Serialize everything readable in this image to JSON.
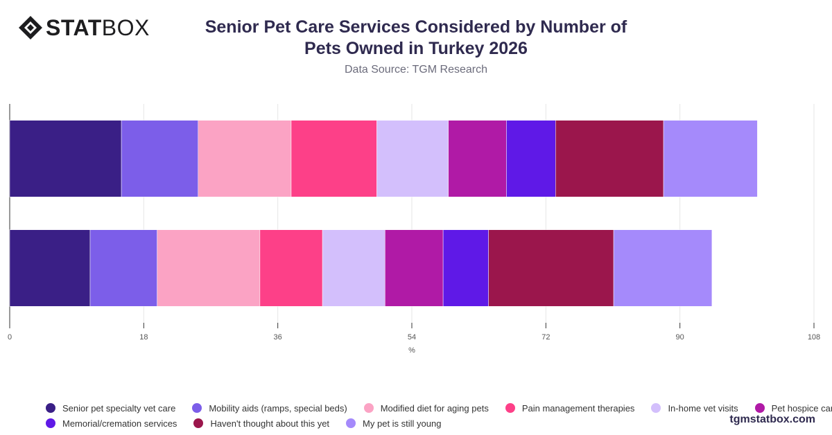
{
  "brand": {
    "logo_bold": "STAT",
    "logo_light": "BOX",
    "watermark": "tgmstatbox.com"
  },
  "header": {
    "title_line1": "Senior Pet Care Services Considered by Number of",
    "title_line2": "Pets Owned in Turkey 2026",
    "subtitle": "Data Source: TGM Research"
  },
  "chart_data": {
    "type": "bar",
    "orientation": "horizontal",
    "stacked": true,
    "categories": [
      "",
      ""
    ],
    "xlabel": "%",
    "xlim": [
      0,
      108
    ],
    "xticks": [
      0,
      18,
      36,
      54,
      72,
      90,
      108
    ],
    "grid": true,
    "legend_position": "bottom",
    "series": [
      {
        "name": "Senior pet specialty vet care",
        "color": "#3a1f86",
        "values": [
          15.0,
          10.8
        ]
      },
      {
        "name": "Mobility aids (ramps, special beds)",
        "color": "#7c5ee9",
        "values": [
          10.3,
          9.0
        ]
      },
      {
        "name": "Modified diet for aging pets",
        "color": "#fba3c4",
        "values": [
          12.5,
          13.8
        ]
      },
      {
        "name": "Pain management therapies",
        "color": "#fd4088",
        "values": [
          11.5,
          8.4
        ]
      },
      {
        "name": "In-home vet visits",
        "color": "#d3bffc",
        "values": [
          9.6,
          8.4
        ]
      },
      {
        "name": "Pet hospice care",
        "color": "#b01aa6",
        "values": [
          7.8,
          7.8
        ]
      },
      {
        "name": "Memorial/cremation services",
        "color": "#5f19e7",
        "values": [
          6.6,
          6.1
        ]
      },
      {
        "name": "Haven't thought about this yet",
        "color": "#9b164c",
        "values": [
          14.5,
          16.8
        ]
      },
      {
        "name": "My pet is still young",
        "color": "#a58afb",
        "values": [
          12.6,
          13.2
        ]
      }
    ]
  }
}
